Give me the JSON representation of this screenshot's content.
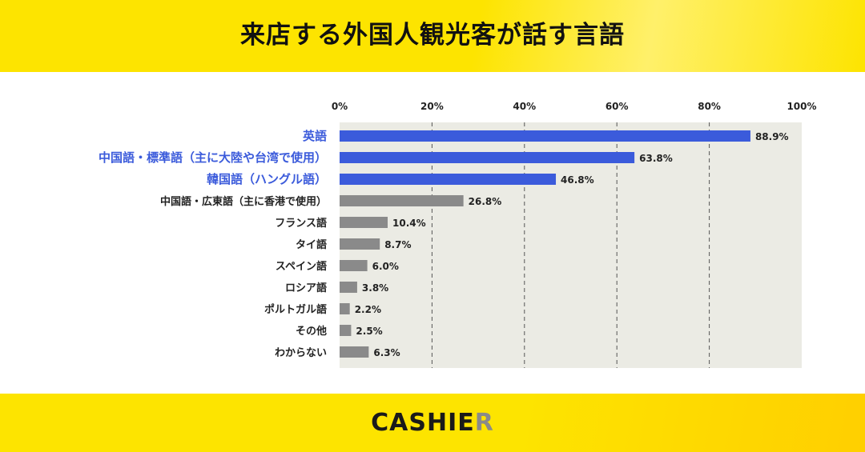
{
  "header": {
    "title": "来店する外国人観光客が話す言語"
  },
  "footer": {
    "logo_main": "CASHIE",
    "logo_last": "R"
  },
  "chart_data": {
    "type": "bar",
    "orientation": "horizontal",
    "title": "来店する外国人観光客が話す言語",
    "xlim": [
      0,
      100
    ],
    "xticks": [
      "0%",
      "20%",
      "40%",
      "60%",
      "80%",
      "100%"
    ],
    "grid": "vertical dashed",
    "categories": [
      "英語",
      "中国語・標準語（主に大陸や台湾で使用）",
      "韓国語（ハングル語）",
      "中国語・広東語（主に香港で使用）",
      "フランス語",
      "タイ語",
      "スペイン語",
      "ロシア語",
      "ポルトガル語",
      "その他",
      "わからない"
    ],
    "values": [
      88.9,
      63.8,
      46.8,
      26.8,
      10.4,
      8.7,
      6.0,
      3.8,
      2.2,
      2.5,
      6.3
    ],
    "value_labels": [
      "88.9%",
      "63.8%",
      "46.8%",
      "26.8%",
      "10.4%",
      "8.7%",
      "6.0%",
      "3.8%",
      "2.2%",
      "2.5%",
      "6.3%"
    ],
    "highlight_count": 3,
    "colors": {
      "highlight": "#3b5bdb",
      "normal": "#8a8a8a",
      "plot_bg": "#ebebe4",
      "grid": "#555555"
    }
  }
}
